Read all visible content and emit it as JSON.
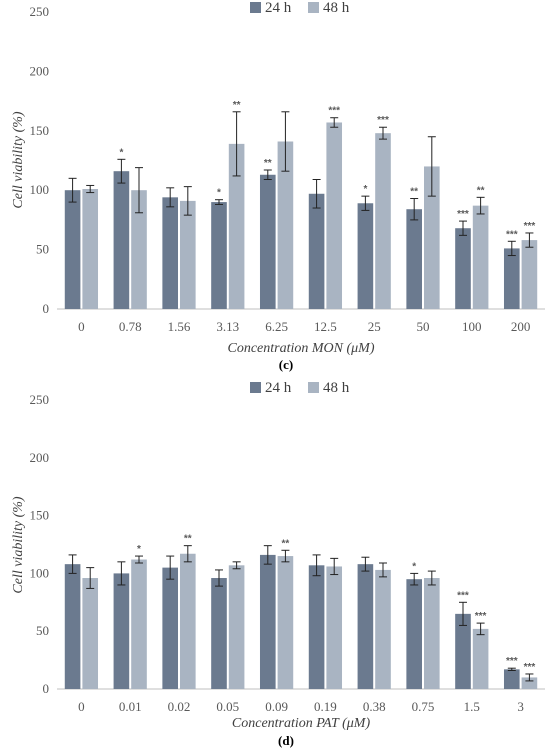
{
  "chart_data": [
    {
      "type": "bar",
      "panel_label": "(c)",
      "xlabel": "Concentration MON (μM)",
      "ylabel": "Cell viability (%)",
      "ylim": [
        0,
        250
      ],
      "yticks": [
        0,
        50,
        100,
        150,
        200,
        250
      ],
      "grid": false,
      "legend_position": "top",
      "categories": [
        "0",
        "0.78",
        "1.56",
        "3.13",
        "6.25",
        "12.5",
        "25",
        "50",
        "100",
        "200"
      ],
      "series": [
        {
          "name": "24 h",
          "color": "#6b7a8f",
          "values": [
            100,
            116,
            94,
            90,
            113,
            97,
            89,
            84,
            68,
            51
          ],
          "errors": [
            10,
            10,
            8,
            2,
            4,
            12,
            6,
            9,
            6,
            6
          ],
          "significance": [
            "",
            "*",
            "",
            "*",
            "**",
            "",
            "*",
            "**",
            "***",
            "***"
          ]
        },
        {
          "name": "48 h",
          "color": "#a9b4c2",
          "values": [
            101,
            100,
            91,
            139,
            141,
            157,
            148,
            120,
            87,
            58
          ],
          "errors": [
            3,
            19,
            12,
            27,
            25,
            4,
            5,
            25,
            7,
            6
          ],
          "significance": [
            "",
            "",
            "",
            "**",
            "",
            "***",
            "***",
            "",
            "**",
            "***"
          ]
        }
      ]
    },
    {
      "type": "bar",
      "panel_label": "(d)",
      "xlabel": "Concentration PAT (μM)",
      "ylabel": "Cell viability (%)",
      "ylim": [
        0,
        250
      ],
      "yticks": [
        0,
        50,
        100,
        150,
        200,
        250
      ],
      "grid": false,
      "legend_position": "top",
      "categories": [
        "0",
        "0.01",
        "0.02",
        "0.05",
        "0.09",
        "0.19",
        "0.38",
        "0.75",
        "1.5",
        "3"
      ],
      "series": [
        {
          "name": "24 h",
          "color": "#6b7a8f",
          "values": [
            108,
            100,
            105,
            96,
            116,
            107,
            108,
            95,
            65,
            17
          ],
          "errors": [
            8,
            10,
            10,
            7,
            8,
            9,
            6,
            5,
            10,
            1
          ],
          "significance": [
            "",
            "",
            "",
            "",
            "",
            "",
            "",
            "*",
            "***",
            "***"
          ]
        },
        {
          "name": "48 h",
          "color": "#a9b4c2",
          "values": [
            96,
            112,
            117,
            107,
            115,
            106,
            103,
            96,
            52,
            10
          ],
          "errors": [
            9,
            3,
            7,
            3,
            5,
            7,
            6,
            6,
            5,
            3
          ],
          "significance": [
            "",
            "*",
            "**",
            "",
            "**",
            "",
            "",
            "",
            "***",
            "***"
          ]
        }
      ]
    }
  ]
}
